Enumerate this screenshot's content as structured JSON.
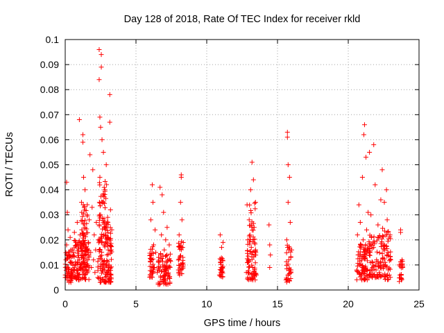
{
  "chart_data": {
    "type": "scatter",
    "title": "Day 128 of 2018, Rate Of TEC Index for receiver rkld",
    "xlabel": "GPS time / hours",
    "ylabel": "ROTI / TECUs",
    "xlim": [
      0,
      25
    ],
    "ylim": [
      0,
      0.1
    ],
    "xticks": [
      0,
      5,
      10,
      15,
      20,
      25
    ],
    "yticks": [
      0,
      0.01,
      0.02,
      0.03,
      0.04,
      0.05,
      0.06,
      0.07,
      0.08,
      0.09,
      0.1
    ],
    "xtick_labels": [
      "0",
      "5",
      "10",
      "15",
      "20",
      "25"
    ],
    "ytick_labels": [
      "0",
      "0.01",
      "0.02",
      "0.03",
      "0.04",
      "0.05",
      "0.06",
      "0.07",
      "0.08",
      "0.09",
      "0.1"
    ],
    "grid": true,
    "marker": "+",
    "color": "#ff0000",
    "series": [
      {
        "name": "ROTI",
        "points": [
          [
            0.0,
            0.005
          ],
          [
            0.05,
            0.012
          ],
          [
            0.1,
            0.018
          ],
          [
            0.1,
            0.043
          ],
          [
            0.15,
            0.031
          ],
          [
            0.2,
            0.009
          ],
          [
            0.2,
            0.024
          ],
          [
            0.25,
            0.014
          ],
          [
            0.3,
            0.006
          ],
          [
            0.35,
            0.021
          ],
          [
            0.4,
            0.011
          ],
          [
            0.45,
            0.008
          ],
          [
            0.5,
            0.016
          ],
          [
            0.55,
            0.007
          ],
          [
            0.6,
            0.015
          ],
          [
            0.65,
            0.023
          ],
          [
            0.7,
            0.01
          ],
          [
            0.75,
            0.019
          ],
          [
            0.8,
            0.008
          ],
          [
            0.85,
            0.027
          ],
          [
            0.9,
            0.013
          ],
          [
            0.95,
            0.006
          ],
          [
            1.0,
            0.012
          ],
          [
            1.0,
            0.068
          ],
          [
            1.05,
            0.022
          ],
          [
            1.1,
            0.009
          ],
          [
            1.15,
            0.035
          ],
          [
            1.2,
            0.014
          ],
          [
            1.25,
            0.062
          ],
          [
            1.25,
            0.059
          ],
          [
            1.3,
            0.011
          ],
          [
            1.3,
            0.045
          ],
          [
            1.35,
            0.005
          ],
          [
            1.4,
            0.025
          ],
          [
            1.4,
            0.04
          ],
          [
            1.45,
            0.017
          ],
          [
            1.5,
            0.008
          ],
          [
            1.55,
            0.03
          ],
          [
            1.6,
            0.012
          ],
          [
            1.65,
            0.019
          ],
          [
            1.7,
            0.028
          ],
          [
            1.75,
            0.054
          ],
          [
            1.8,
            0.015
          ],
          [
            1.85,
            0.009
          ],
          [
            1.9,
            0.033
          ],
          [
            1.95,
            0.048
          ],
          [
            2.0,
            0.012
          ],
          [
            2.05,
            0.022
          ],
          [
            2.1,
            0.007
          ],
          [
            2.15,
            0.016
          ],
          [
            2.2,
            0.027
          ],
          [
            2.3,
            0.005
          ],
          [
            2.35,
            0.02
          ],
          [
            2.4,
            0.096
          ],
          [
            2.4,
            0.084
          ],
          [
            2.45,
            0.069
          ],
          [
            2.45,
            0.045
          ],
          [
            2.5,
            0.03
          ],
          [
            2.5,
            0.065
          ],
          [
            2.55,
            0.094
          ],
          [
            2.55,
            0.089
          ],
          [
            2.6,
            0.06
          ],
          [
            2.6,
            0.012
          ],
          [
            2.65,
            0.035
          ],
          [
            2.7,
            0.055
          ],
          [
            2.75,
            0.018
          ],
          [
            2.8,
            0.04
          ],
          [
            2.8,
            0.008
          ],
          [
            2.85,
            0.025
          ],
          [
            2.9,
            0.05
          ],
          [
            2.95,
            0.014
          ],
          [
            3.0,
            0.029
          ],
          [
            3.0,
            0.006
          ],
          [
            3.05,
            0.021
          ],
          [
            3.1,
            0.01
          ],
          [
            3.15,
            0.078
          ],
          [
            3.15,
            0.067
          ],
          [
            3.2,
            0.032
          ],
          [
            3.25,
            0.016
          ],
          [
            6.0,
            0.006
          ],
          [
            6.05,
            0.028
          ],
          [
            6.1,
            0.012
          ],
          [
            6.15,
            0.042
          ],
          [
            6.2,
            0.035
          ],
          [
            6.25,
            0.018
          ],
          [
            6.3,
            0.009
          ],
          [
            6.35,
            0.024
          ],
          [
            6.4,
            0.015
          ],
          [
            6.5,
            0.007
          ],
          [
            6.6,
            0.013
          ],
          [
            6.7,
            0.041
          ],
          [
            6.75,
            0.005
          ],
          [
            6.8,
            0.022
          ],
          [
            6.85,
            0.038
          ],
          [
            6.9,
            0.01
          ],
          [
            6.95,
            0.031
          ],
          [
            7.0,
            0.016
          ],
          [
            7.05,
            0.003
          ],
          [
            7.1,
            0.02
          ],
          [
            7.15,
            0.008
          ],
          [
            7.2,
            0.025
          ],
          [
            7.25,
            0.012
          ],
          [
            7.3,
            0.006
          ],
          [
            7.35,
            0.018
          ],
          [
            7.4,
            0.009
          ],
          [
            8.0,
            0.008
          ],
          [
            8.05,
            0.022
          ],
          [
            8.1,
            0.013
          ],
          [
            8.15,
            0.035
          ],
          [
            8.2,
            0.046
          ],
          [
            8.2,
            0.045
          ],
          [
            8.25,
            0.028
          ],
          [
            8.3,
            0.017
          ],
          [
            8.35,
            0.01
          ],
          [
            10.9,
            0.006
          ],
          [
            10.95,
            0.022
          ],
          [
            11.0,
            0.012
          ],
          [
            11.05,
            0.017
          ],
          [
            11.1,
            0.009
          ],
          [
            11.15,
            0.019
          ],
          [
            12.8,
            0.007
          ],
          [
            12.85,
            0.034
          ],
          [
            12.9,
            0.02
          ],
          [
            12.95,
            0.012
          ],
          [
            13.0,
            0.028
          ],
          [
            13.05,
            0.005
          ],
          [
            13.1,
            0.04
          ],
          [
            13.15,
            0.017
          ],
          [
            13.2,
            0.051
          ],
          [
            13.25,
            0.009
          ],
          [
            13.3,
            0.044
          ],
          [
            13.35,
            0.025
          ],
          [
            13.4,
            0.014
          ],
          [
            13.45,
            0.035
          ],
          [
            13.5,
            0.006
          ],
          [
            14.4,
            0.026
          ],
          [
            14.45,
            0.018
          ],
          [
            14.45,
            0.009
          ],
          [
            14.5,
            0.014
          ],
          [
            15.6,
            0.004
          ],
          [
            15.65,
            0.02
          ],
          [
            15.7,
            0.063
          ],
          [
            15.7,
            0.061
          ],
          [
            15.75,
            0.035
          ],
          [
            15.75,
            0.05
          ],
          [
            15.8,
            0.012
          ],
          [
            15.85,
            0.045
          ],
          [
            15.9,
            0.027
          ],
          [
            15.95,
            0.008
          ],
          [
            16.0,
            0.016
          ],
          [
            20.6,
            0.008
          ],
          [
            20.65,
            0.022
          ],
          [
            20.7,
            0.014
          ],
          [
            20.75,
            0.034
          ],
          [
            20.8,
            0.01
          ],
          [
            20.85,
            0.027
          ],
          [
            20.9,
            0.017
          ],
          [
            20.95,
            0.006
          ],
          [
            21.0,
            0.045
          ],
          [
            21.05,
            0.02
          ],
          [
            21.1,
            0.062
          ],
          [
            21.15,
            0.066
          ],
          [
            21.2,
            0.013
          ],
          [
            21.25,
            0.053
          ],
          [
            21.3,
            0.024
          ],
          [
            21.35,
            0.008
          ],
          [
            21.4,
            0.031
          ],
          [
            21.5,
            0.055
          ],
          [
            21.55,
            0.015
          ],
          [
            21.6,
            0.03
          ],
          [
            21.7,
            0.009
          ],
          [
            21.8,
            0.058
          ],
          [
            21.9,
            0.042
          ],
          [
            22.0,
            0.012
          ],
          [
            22.1,
            0.026
          ],
          [
            22.2,
            0.007
          ],
          [
            22.3,
            0.036
          ],
          [
            22.4,
            0.048
          ],
          [
            22.5,
            0.018
          ],
          [
            22.55,
            0.035
          ],
          [
            22.6,
            0.011
          ],
          [
            22.7,
            0.04
          ],
          [
            22.75,
            0.028
          ],
          [
            22.8,
            0.015
          ],
          [
            22.9,
            0.006
          ],
          [
            22.95,
            0.022
          ],
          [
            23.0,
            0.012
          ],
          [
            23.6,
            0.01
          ],
          [
            23.65,
            0.006
          ],
          [
            23.7,
            0.024
          ],
          [
            23.7,
            0.023
          ],
          [
            23.75,
            0.004
          ],
          [
            23.8,
            0.012
          ],
          [
            23.85,
            0.009
          ]
        ]
      }
    ],
    "dense_clusters": [
      [
        0.0,
        0.6,
        0.003,
        0.016,
        60
      ],
      [
        0.6,
        1.7,
        0.004,
        0.02,
        120
      ],
      [
        1.1,
        1.6,
        0.015,
        0.035,
        45
      ],
      [
        2.3,
        3.3,
        0.003,
        0.025,
        130
      ],
      [
        2.4,
        3.1,
        0.025,
        0.045,
        40
      ],
      [
        5.95,
        6.25,
        0.005,
        0.018,
        35
      ],
      [
        6.55,
        7.45,
        0.002,
        0.015,
        75
      ],
      [
        8.0,
        8.35,
        0.006,
        0.02,
        35
      ],
      [
        10.9,
        11.15,
        0.005,
        0.014,
        25
      ],
      [
        12.85,
        13.5,
        0.004,
        0.02,
        60
      ],
      [
        13.0,
        13.45,
        0.02,
        0.035,
        20
      ],
      [
        15.6,
        15.95,
        0.003,
        0.018,
        30
      ],
      [
        20.6,
        21.35,
        0.004,
        0.02,
        80
      ],
      [
        21.35,
        22.4,
        0.005,
        0.022,
        80
      ],
      [
        22.4,
        23.0,
        0.004,
        0.025,
        55
      ],
      [
        23.6,
        23.85,
        0.003,
        0.012,
        18
      ]
    ]
  }
}
